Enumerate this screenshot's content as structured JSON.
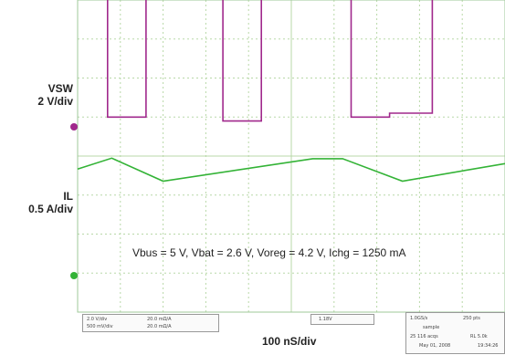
{
  "labels": {
    "ch1_name": "VSW",
    "ch1_scale": "2 V/div",
    "ch2_name": "IL",
    "ch2_scale": "0.5 A/div",
    "timebase": "100 nS/div",
    "conditions": "Vbus = 5 V, Vbat = 2.6 V, Voreg = 4.2 V, Ichg = 1250 mA"
  },
  "readouts": {
    "ch1": "2.0 V/div",
    "ch1_bw": "20.0 mΩ/A",
    "ch2": "500 mV/div",
    "ch2_bw": "20.0 mΩ/A",
    "trigger": "1.18V",
    "rate": "1.0GS/s",
    "record": "250 pts",
    "mode": "sample",
    "acqs": "25 116 acqs",
    "rl": "RL 5.0k",
    "date": "May 01, 2008",
    "time": "19:34:26"
  },
  "colors": {
    "vsw": "#a0288c",
    "il": "#33b336",
    "grid": "#b8d8a8"
  },
  "chart_data": {
    "type": "line",
    "x_unit": "nS",
    "x_range": [
      0,
      1000
    ],
    "series": [
      {
        "name": "VSW",
        "y_unit": "V",
        "x": [
          0,
          70,
          70,
          160,
          160,
          340,
          340,
          430,
          430,
          640,
          640,
          730,
          730,
          830,
          830,
          1000
        ],
        "y": [
          7.2,
          7.2,
          0.5,
          0.5,
          8.0,
          8.0,
          0.3,
          0.3,
          7.3,
          7.3,
          0.5,
          0.5,
          0.7,
          0.7,
          7.9,
          7.9
        ]
      },
      {
        "name": "IL",
        "y_unit": "A",
        "x": [
          0,
          80,
          200,
          550,
          620,
          760,
          1000
        ],
        "y": [
          1.95,
          2.15,
          1.73,
          2.14,
          2.14,
          1.73,
          2.05
        ]
      }
    ]
  }
}
